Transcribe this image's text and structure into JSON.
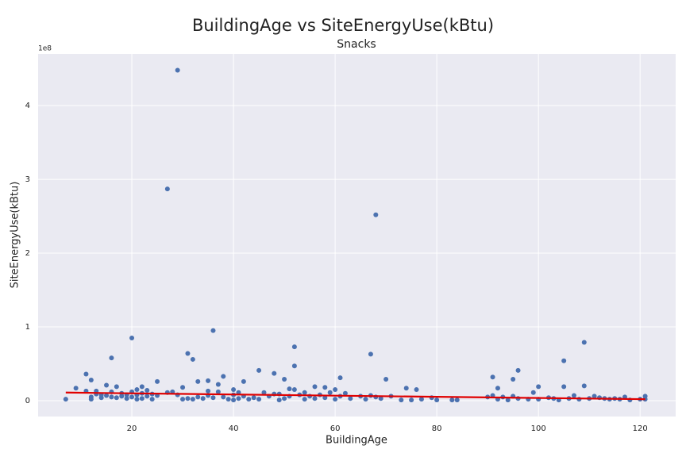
{
  "chart_data": {
    "type": "scatter",
    "title": "BuildingAge vs SiteEnergyUse(kBtu)",
    "subtitle": "Snacks",
    "x_label": "BuildingAge",
    "y_label": "SiteEnergyUse(kBtu)",
    "y_offset_label": "1e8",
    "color": "#4c72b0",
    "x": [
      7,
      9,
      11,
      11,
      12,
      12,
      12,
      13,
      13,
      14,
      14,
      15,
      15,
      16,
      16,
      16,
      17,
      17,
      18,
      18,
      19,
      19,
      20,
      20,
      20,
      21,
      21,
      21,
      22,
      22,
      22,
      23,
      23,
      24,
      24,
      25,
      25,
      27,
      27,
      28,
      29,
      29,
      30,
      30,
      31,
      31,
      32,
      32,
      33,
      33,
      34,
      35,
      35,
      35,
      36,
      36,
      37,
      37,
      38,
      38,
      39,
      40,
      40,
      40,
      41,
      41,
      42,
      42,
      43,
      44,
      45,
      45,
      46,
      47,
      48,
      48,
      49,
      49,
      50,
      50,
      51,
      51,
      52,
      52,
      52,
      53,
      54,
      54,
      55,
      56,
      56,
      57,
      58,
      58,
      59,
      60,
      60,
      61,
      61,
      62,
      63,
      65,
      66,
      67,
      67,
      68,
      68,
      69,
      70,
      71,
      73,
      74,
      75,
      76,
      77,
      79,
      80,
      83,
      84,
      90,
      91,
      91,
      92,
      92,
      93,
      94,
      95,
      95,
      96,
      96,
      98,
      99,
      100,
      100,
      102,
      103,
      104,
      105,
      105,
      106,
      107,
      108,
      109,
      109,
      110,
      111,
      112,
      113,
      114,
      115,
      116,
      117,
      118,
      120,
      121,
      121
    ],
    "values": [
      0.02,
      0.17,
      0.36,
      0.13,
      0.28,
      0.02,
      0.05,
      0.13,
      0.09,
      0.04,
      0.08,
      0.21,
      0.07,
      0.58,
      0.12,
      0.05,
      0.19,
      0.04,
      0.06,
      0.1,
      0.03,
      0.08,
      0.85,
      0.12,
      0.05,
      0.02,
      0.15,
      0.08,
      0.19,
      0.1,
      0.03,
      0.14,
      0.06,
      0.09,
      0.02,
      0.26,
      0.07,
      2.87,
      0.11,
      0.12,
      4.48,
      0.08,
      0.18,
      0.02,
      0.64,
      0.03,
      0.56,
      0.02,
      0.26,
      0.05,
      0.03,
      0.27,
      0.13,
      0.07,
      0.95,
      0.04,
      0.22,
      0.12,
      0.33,
      0.05,
      0.02,
      0.15,
      0.08,
      0.01,
      0.11,
      0.03,
      0.26,
      0.06,
      0.02,
      0.04,
      0.41,
      0.02,
      0.11,
      0.06,
      0.37,
      0.09,
      0.09,
      0.01,
      0.29,
      0.03,
      0.16,
      0.06,
      0.73,
      0.47,
      0.15,
      0.08,
      0.11,
      0.02,
      0.06,
      0.19,
      0.03,
      0.08,
      0.18,
      0.04,
      0.11,
      0.15,
      0.02,
      0.31,
      0.06,
      0.1,
      0.03,
      0.06,
      0.02,
      0.63,
      0.07,
      2.52,
      0.05,
      0.03,
      0.29,
      0.06,
      0.01,
      0.17,
      0.01,
      0.15,
      0.02,
      0.04,
      0.01,
      0.01,
      0.01,
      0.05,
      0.32,
      0.07,
      0.17,
      0.02,
      0.05,
      0.01,
      0.29,
      0.06,
      0.41,
      0.03,
      0.02,
      0.11,
      0.19,
      0.02,
      0.04,
      0.03,
      0.01,
      0.54,
      0.19,
      0.03,
      0.07,
      0.02,
      0.79,
      0.2,
      0.03,
      0.06,
      0.04,
      0.03,
      0.02,
      0.03,
      0.02,
      0.05,
      0.01,
      0.02,
      0.06,
      0.02
    ],
    "trend": {
      "x": [
        7,
        121
      ],
      "values": [
        0.11,
        0.02
      ],
      "color": "#e00000"
    },
    "xlim": [
      1.56,
      127
    ],
    "ylim": [
      -0.215,
      4.7
    ],
    "xticks": [
      20,
      40,
      60,
      80,
      100,
      120
    ],
    "yticks": [
      0,
      1,
      2,
      3,
      4
    ],
    "grid": true
  }
}
